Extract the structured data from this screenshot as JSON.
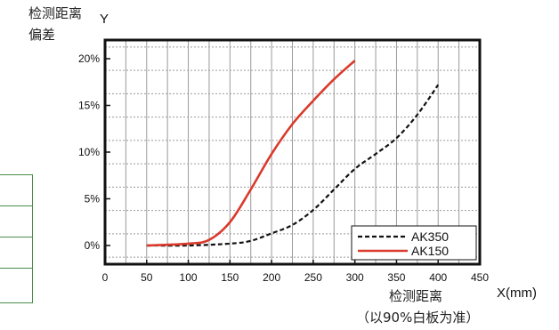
{
  "chart_data": {
    "type": "line",
    "y_label_lines": [
      "检测距离",
      "偏差"
    ],
    "y_axis_letter": "Y",
    "x_label_main": "检测距离",
    "x_label_note": "（以90%白板为准）",
    "x_axis_letter": "X(mm)",
    "xlim": [
      0,
      450
    ],
    "ylim": [
      -2,
      22
    ],
    "x_ticks": [
      "0",
      "50",
      "100",
      "150",
      "200",
      "250",
      "300",
      "350",
      "400",
      "450"
    ],
    "y_ticks": [
      "0%",
      "5%",
      "10%",
      "15%",
      "20%"
    ],
    "grid": true,
    "legend_position": "bottom-right",
    "series": [
      {
        "name": "AK350",
        "style": "dashed",
        "color": "#111111",
        "points": [
          [
            50,
            0
          ],
          [
            100,
            0
          ],
          [
            150,
            0.2
          ],
          [
            175,
            0.5
          ],
          [
            200,
            1.3
          ],
          [
            225,
            2.2
          ],
          [
            250,
            3.8
          ],
          [
            275,
            6
          ],
          [
            300,
            8.2
          ],
          [
            325,
            9.8
          ],
          [
            350,
            11.5
          ],
          [
            375,
            14
          ],
          [
            400,
            17.2
          ]
        ]
      },
      {
        "name": "AK150",
        "style": "solid",
        "color": "#d93a2b",
        "points": [
          [
            50,
            0
          ],
          [
            100,
            0.2
          ],
          [
            125,
            0.6
          ],
          [
            150,
            2.5
          ],
          [
            175,
            6
          ],
          [
            200,
            9.8
          ],
          [
            225,
            13
          ],
          [
            250,
            15.5
          ],
          [
            275,
            17.8
          ],
          [
            300,
            19.8
          ]
        ]
      }
    ]
  }
}
